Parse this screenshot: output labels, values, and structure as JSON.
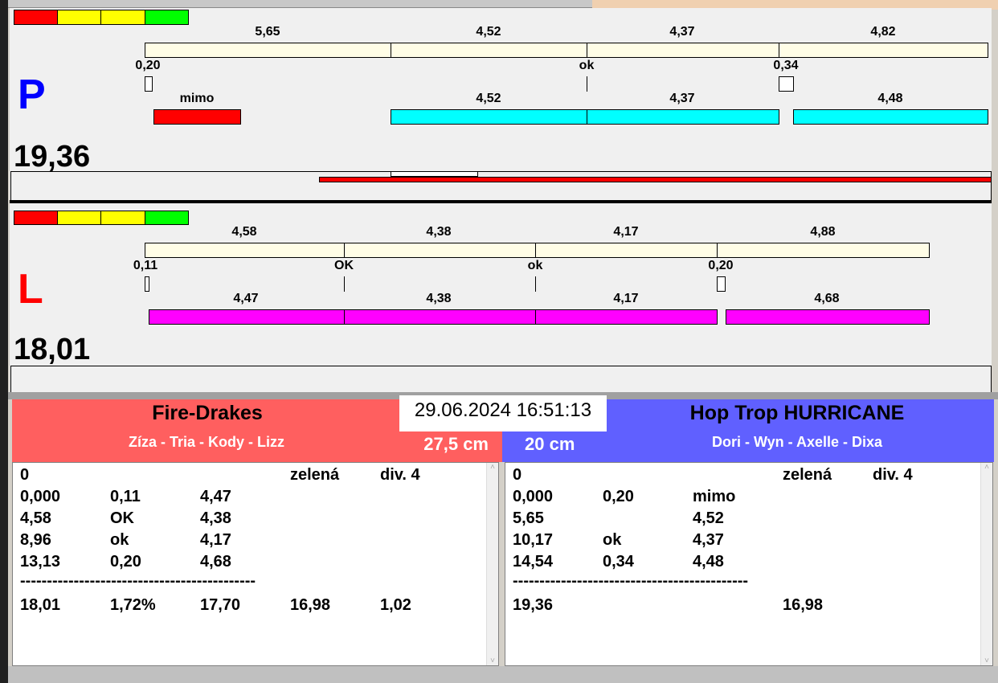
{
  "colors": {
    "indicator": [
      "#ff0000",
      "#ffff00",
      "#ffff00",
      "#00ff00"
    ],
    "top_bar": "#fffde6",
    "p_bar": "#00ffff",
    "l_bar": "#ff00ff",
    "miss": "#ff0000",
    "team_left": "#ff5f5f",
    "team_right": "#6060ff"
  },
  "P": {
    "letter": "P",
    "total": "19,36",
    "top_labels": [
      "5,65",
      "4,52",
      "4,37",
      "4,82"
    ],
    "markers": [
      "0,20",
      "ok",
      "0,34"
    ],
    "bottom_labels": [
      "mimo",
      "4,52",
      "4,37",
      "4,48"
    ]
  },
  "L": {
    "letter": "L",
    "total": "18,01",
    "top_labels": [
      "4,58",
      "4,38",
      "4,17",
      "4,88"
    ],
    "markers": [
      "0,11",
      "OK",
      "ok",
      "0,20"
    ],
    "bottom_labels": [
      "4,47",
      "4,38",
      "4,17",
      "4,68"
    ]
  },
  "datetime": "29.06.2024 16:51:13",
  "left_team": {
    "name": "Fire-Drakes",
    "members": "Zíza - Tria - Kody - Lizz",
    "distance": "27,5 cm",
    "rows": [
      [
        "0",
        "",
        "",
        "zelená",
        "div. 4"
      ],
      [
        "0,000",
        "0,11",
        "4,47",
        "",
        ""
      ],
      [
        "4,58",
        "OK",
        "4,38",
        "",
        ""
      ],
      [
        "8,96",
        "ok",
        "4,17",
        "",
        ""
      ],
      [
        "13,13",
        "0,20",
        "4,68",
        "",
        ""
      ]
    ],
    "separator": "--------------------------------------------",
    "summary": [
      "18,01",
      "1,72%",
      "17,70",
      "16,98",
      "1,02"
    ]
  },
  "right_team": {
    "name": "Hop Trop HURRICANE",
    "members": "Dori - Wyn - Axelle - Dixa",
    "distance": "20 cm",
    "rows": [
      [
        "0",
        "",
        "",
        "zelená",
        "div. 4"
      ],
      [
        "0,000",
        "0,20",
        "mimo",
        "",
        ""
      ],
      [
        "5,65",
        "",
        "4,52",
        "",
        ""
      ],
      [
        "10,17",
        "ok",
        "4,37",
        "",
        ""
      ],
      [
        "14,54",
        "0,34",
        "4,48",
        "",
        ""
      ]
    ],
    "separator": "--------------------------------------------",
    "summary": [
      "19,36",
      "",
      "",
      "16,98",
      ""
    ]
  }
}
